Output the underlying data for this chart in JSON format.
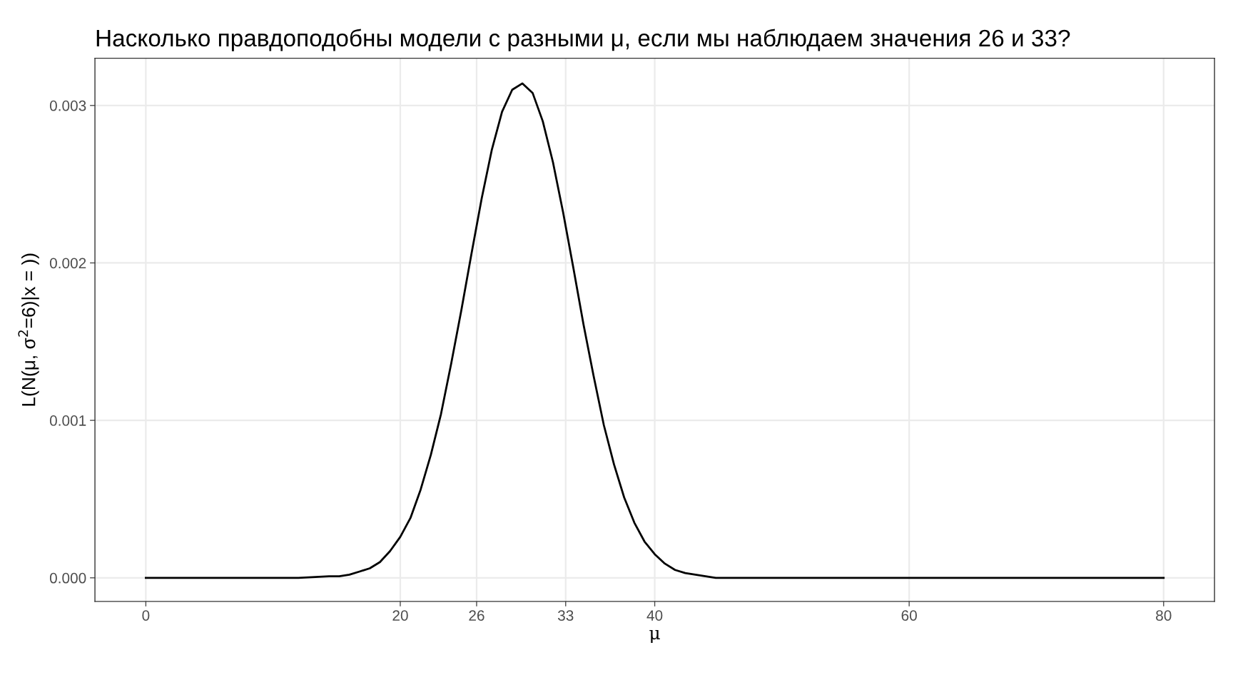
{
  "chart_data": {
    "type": "line",
    "title": "Насколько правдоподобны модели с разными μ, если мы наблюдаем значения 26 и 33?",
    "xlabel": "μ",
    "ylabel": "L(N(μ, σ$^{2}$=6)|x = ))",
    "x": [
      0,
      8,
      12,
      14.4,
      15.2,
      16,
      16.8,
      17.6,
      18.4,
      19.2,
      20,
      20.8,
      21.6,
      22.4,
      23.2,
      24,
      24.8,
      25.6,
      26.4,
      27.2,
      28,
      28.8,
      29.6,
      30.4,
      31.2,
      32,
      32.8,
      33.6,
      34.4,
      35.2,
      36,
      36.8,
      37.6,
      38.4,
      39.2,
      40,
      40.8,
      41.6,
      42.4,
      43.2,
      44,
      44.8,
      48,
      60,
      80
    ],
    "series": [
      {
        "color": "#000000",
        "values": [
          0,
          0,
          0,
          1e-05,
          1e-05,
          2e-05,
          4e-05,
          6e-05,
          0.0001,
          0.00017,
          0.00026,
          0.00038,
          0.00056,
          0.00078,
          0.00104,
          0.00136,
          0.0017,
          0.00206,
          0.00241,
          0.00272,
          0.00296,
          0.0031,
          0.00314,
          0.00308,
          0.0029,
          0.00264,
          0.00232,
          0.00197,
          0.00161,
          0.00128,
          0.00097,
          0.00072,
          0.00051,
          0.00035,
          0.00023,
          0.00015,
          9e-05,
          5e-05,
          3e-05,
          2e-05,
          1e-05,
          0,
          0,
          0,
          0
        ]
      }
    ],
    "xlim": [
      -4,
      84
    ],
    "xticks": [
      0,
      20,
      26,
      33,
      40,
      60,
      80
    ],
    "ylim": [
      -0.00015,
      0.0033
    ],
    "yticks": [
      {
        "value": 0,
        "label": "0.000"
      },
      {
        "value": 0.001,
        "label": "0.001"
      },
      {
        "value": 0.002,
        "label": "0.002"
      },
      {
        "value": 0.003,
        "label": "0.003"
      }
    ],
    "grid": true,
    "legend": false,
    "marker": "none",
    "line_style": "solid"
  }
}
